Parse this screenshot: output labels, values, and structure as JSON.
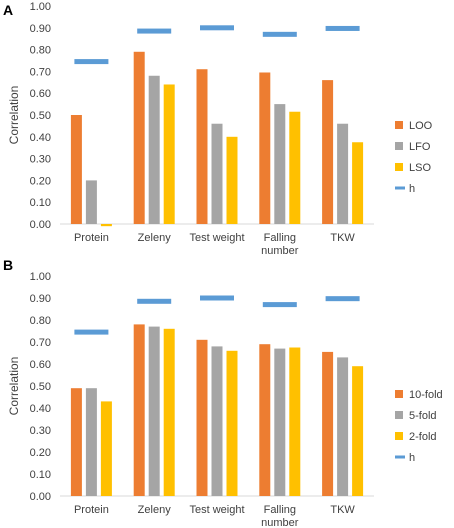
{
  "chart_data": [
    {
      "type": "bar",
      "panel_label": "A",
      "ylabel": "Correlation",
      "ylim": [
        0,
        1
      ],
      "yticks": [
        "0.00",
        "0.10",
        "0.20",
        "0.30",
        "0.40",
        "0.50",
        "0.60",
        "0.70",
        "0.80",
        "0.90",
        "1.00"
      ],
      "categories": [
        "Protein",
        "Zeleny",
        "Test weight",
        "Falling\nnumber",
        "TKW"
      ],
      "series": [
        {
          "name": "LOO",
          "color": "#ED7D31",
          "values": [
            0.5,
            0.79,
            0.71,
            0.695,
            0.66
          ]
        },
        {
          "name": "LFO",
          "color": "#A5A5A5",
          "values": [
            0.2,
            0.68,
            0.46,
            0.55,
            0.46
          ]
        },
        {
          "name": "LSO",
          "color": "#FFC000",
          "values": [
            -0.01,
            0.64,
            0.4,
            0.515,
            0.375
          ]
        }
      ],
      "h": {
        "name": "h",
        "color": "#5B9BD5",
        "values": [
          0.745,
          0.885,
          0.9,
          0.87,
          0.897
        ]
      },
      "legend_position": "right",
      "grid": false
    },
    {
      "type": "bar",
      "panel_label": "B",
      "ylabel": "Correlation",
      "ylim": [
        0,
        1
      ],
      "yticks": [
        "0.00",
        "0.10",
        "0.20",
        "0.30",
        "0.40",
        "0.50",
        "0.60",
        "0.70",
        "0.80",
        "0.90",
        "1.00"
      ],
      "categories": [
        "Protein",
        "Zeleny",
        "Test weight",
        "Falling\nnumber",
        "TKW"
      ],
      "series": [
        {
          "name": "10-fold",
          "color": "#ED7D31",
          "values": [
            0.49,
            0.78,
            0.71,
            0.69,
            0.655
          ]
        },
        {
          "name": "5-fold",
          "color": "#A5A5A5",
          "values": [
            0.49,
            0.77,
            0.68,
            0.67,
            0.63
          ]
        },
        {
          "name": "2-fold",
          "color": "#FFC000",
          "values": [
            0.43,
            0.76,
            0.66,
            0.675,
            0.59
          ]
        }
      ],
      "h": {
        "name": "h",
        "color": "#5B9BD5",
        "values": [
          0.745,
          0.885,
          0.9,
          0.87,
          0.897
        ]
      },
      "legend_position": "right",
      "grid": false
    }
  ]
}
